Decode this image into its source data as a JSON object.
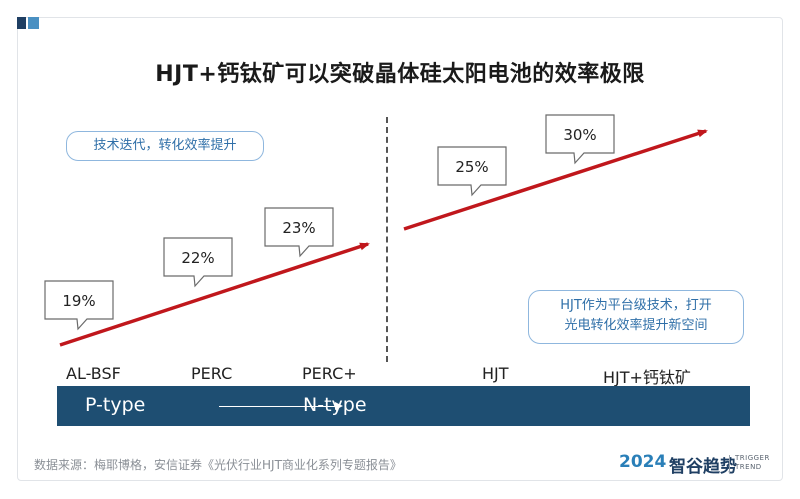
{
  "title": "HJT+钙钛矿可以突破晶体硅太阳电池的效率极限",
  "callout_left": "技术迭代，转化效率提升",
  "callout_right_line1": "HJT作为平台级技术，打开",
  "callout_right_line2": "光电转化效率提升新空间",
  "bar": {
    "left_label": "P-type",
    "right_label": "N-type"
  },
  "source": "数据来源：梅耶博格，安信证券《光伏行业HJT商业化系列专题报告》",
  "brand": {
    "year": "2024",
    "name": "智谷趋势",
    "small1": "TRIGGER",
    "small2": "TREND"
  },
  "colors": {
    "trend_line": "#c0171c",
    "bar": "#1e4e72",
    "accent": "#2f6fa8"
  },
  "chart_data": {
    "type": "line",
    "categories": [
      "AL-BSF",
      "PERC",
      "PERC+",
      "HJT",
      "HJT+钙钛矿"
    ],
    "series": [
      {
        "values": [
          19,
          22,
          23,
          25,
          30
        ],
        "value_labels": [
          "19%",
          "22%",
          "23%",
          "25%",
          "30%"
        ]
      }
    ],
    "unit": "%",
    "segments": [
      [
        "AL-BSF",
        "PERC",
        "PERC+"
      ],
      [
        "HJT",
        "HJT+钙钛矿"
      ]
    ]
  }
}
